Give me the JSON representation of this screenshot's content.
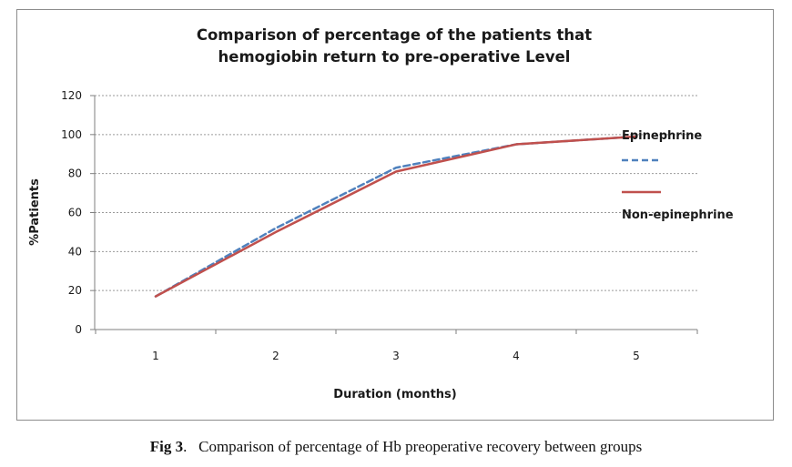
{
  "chart_data": {
    "type": "line",
    "title_line1": "Comparison of percentage of the patients that",
    "title_line2": "hemogiobin return to pre-operative Level",
    "xlabel": "Duration (months)",
    "ylabel": "%Patients",
    "categories": [
      "1",
      "2",
      "3",
      "4",
      "5"
    ],
    "ylim": [
      0,
      120
    ],
    "yticks": [
      "0",
      "20",
      "40",
      "60",
      "80",
      "100",
      "120"
    ],
    "grid": true,
    "legend_position": "right",
    "series": [
      {
        "name": "Epinephrine",
        "values": [
          17,
          52,
          83,
          95,
          99
        ],
        "color": "#4f81bd",
        "dash": "dashed"
      },
      {
        "name": "Non-epinephrine",
        "values": [
          17,
          50,
          81,
          95,
          99
        ],
        "color": "#c0504d",
        "dash": "solid"
      }
    ]
  },
  "caption": {
    "label": "Fig 3",
    "text": "Comparison of percentage of Hb preoperative recovery between groups"
  }
}
